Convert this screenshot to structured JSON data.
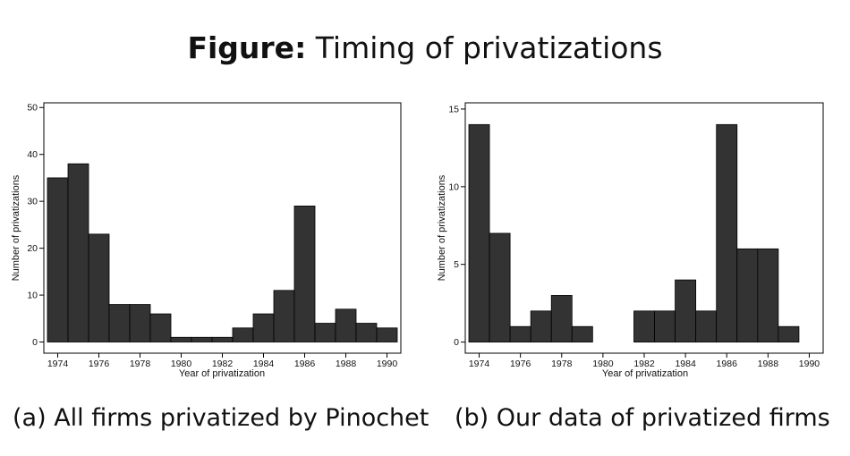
{
  "figure": {
    "title_bold": "Figure:",
    "title_rest": "Timing of privatizations"
  },
  "chart_data": [
    {
      "type": "bar",
      "caption": "(a) All firms privatized by Pinochet",
      "xlabel": "Year of privatization",
      "ylabel": "Number of privatizations",
      "x": [
        1974,
        1975,
        1976,
        1977,
        1978,
        1979,
        1980,
        1981,
        1982,
        1983,
        1984,
        1985,
        1986,
        1987,
        1988,
        1989,
        1990
      ],
      "values": [
        35,
        38,
        23,
        8,
        8,
        6,
        1,
        1,
        1,
        3,
        6,
        11,
        29,
        4,
        7,
        4,
        3
      ],
      "xticks": [
        1974,
        1976,
        1978,
        1980,
        1982,
        1984,
        1986,
        1988,
        1990
      ],
      "yticks": [
        0,
        10,
        20,
        30,
        40,
        50
      ],
      "ylim": [
        0,
        50
      ],
      "bar_color": "#333333",
      "grid": false
    },
    {
      "type": "bar",
      "caption": "(b) Our data of privatized firms",
      "xlabel": "Year of privatization",
      "ylabel": "Number of privatizations",
      "x": [
        1974,
        1975,
        1976,
        1977,
        1978,
        1979,
        1980,
        1981,
        1982,
        1983,
        1984,
        1985,
        1986,
        1987,
        1988,
        1989
      ],
      "values": [
        14,
        7,
        1,
        2,
        3,
        1,
        0,
        0,
        2,
        2,
        4,
        2,
        14,
        6,
        6,
        1
      ],
      "xticks": [
        1974,
        1976,
        1978,
        1980,
        1982,
        1984,
        1986,
        1988,
        1990
      ],
      "yticks": [
        0,
        5,
        10,
        15
      ],
      "ylim": [
        0,
        15
      ],
      "bar_color": "#333333",
      "grid": false
    }
  ]
}
